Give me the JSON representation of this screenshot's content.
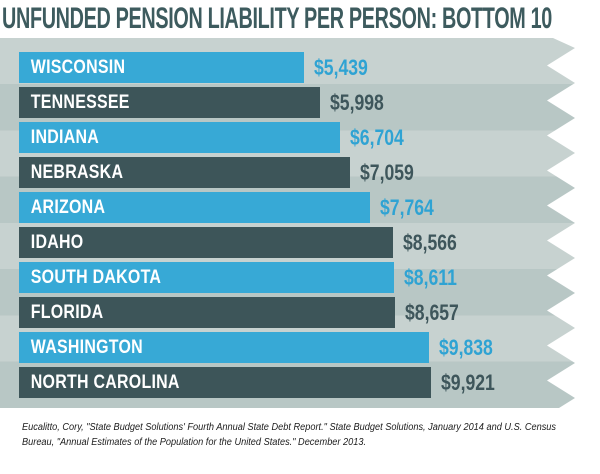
{
  "chart_data": {
    "type": "bar",
    "orientation": "horizontal",
    "title": "UNFUNDED PENSION LIABILITY PER PERSON: BOTTOM 10",
    "categories": [
      "WISCONSIN",
      "TENNESSEE",
      "INDIANA",
      "NEBRASKA",
      "ARIZONA",
      "IDAHO",
      "SOUTH DAKOTA",
      "FLORIDA",
      "WASHINGTON",
      "NORTH CAROLINA"
    ],
    "values": [
      5439,
      5998,
      6704,
      7059,
      7764,
      8566,
      8611,
      8657,
      9838,
      9921
    ],
    "value_labels": [
      "$5,439",
      "$5,998",
      "$6,704",
      "$7,059",
      "$7,764",
      "$8,566",
      "$8,611",
      "$8,657",
      "$9,838",
      "$9,921"
    ],
    "value_axis_visible": false,
    "grid": false,
    "legend": false,
    "colors": {
      "blue_bar": "#37a9d6",
      "dark_bar": "#3d5559",
      "blue_value_text": "#2fa3d3",
      "dark_value_text": "#3e565b",
      "title_text": "#3d5b5e",
      "background_stripe_light": "#c7d2d0",
      "background_stripe_dark": "#b8c7c5"
    }
  },
  "source": {
    "line1": "Eucalitto, Cory, \"State Budget Solutions' Fourth Annual State Debt Report.\" State Budget Solutions, January 2014 and U.S. Census",
    "line2": "Bureau, \"Annual Estimates of the Population for the United States.\" December 2013."
  }
}
